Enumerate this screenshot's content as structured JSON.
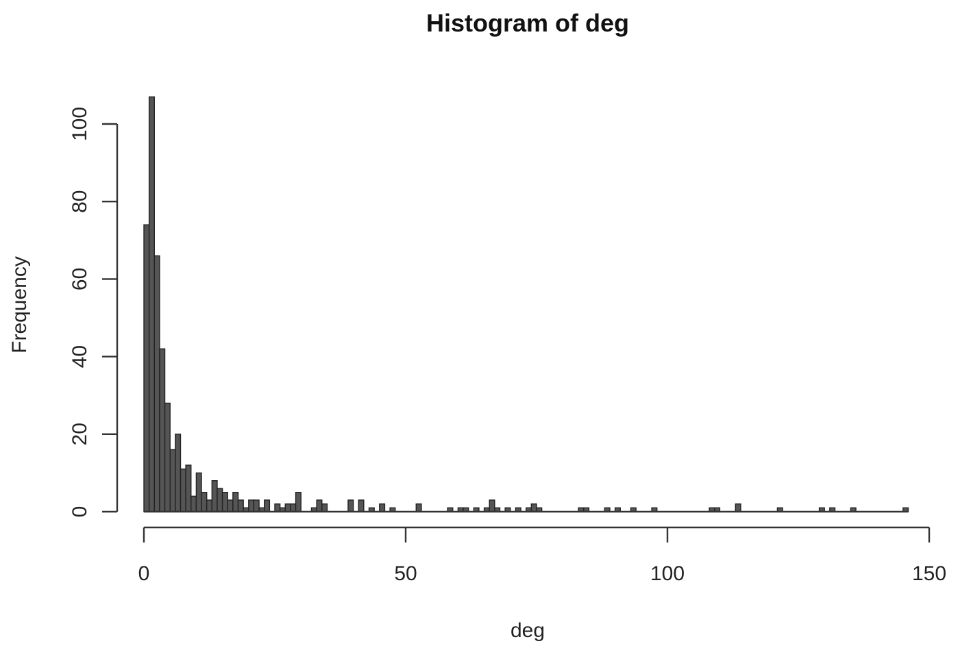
{
  "chart_data": {
    "type": "bar",
    "title": "Histogram of deg",
    "xlabel": "deg",
    "ylabel": "Frequency",
    "xlim": [
      0,
      150
    ],
    "ylim": [
      0,
      107
    ],
    "x_ticks": [
      "0",
      "50",
      "100",
      "150"
    ],
    "y_ticks": [
      "0",
      "20",
      "40",
      "60",
      "80",
      "100"
    ],
    "x_tick_values": [
      0,
      50,
      100,
      150
    ],
    "y_tick_values": [
      0,
      20,
      40,
      60,
      80,
      100
    ],
    "bin_width": 1,
    "grid": false,
    "legend": "none",
    "bar_color": "#555555",
    "bins": [
      {
        "x": 1,
        "y": 74
      },
      {
        "x": 2,
        "y": 107
      },
      {
        "x": 3,
        "y": 66
      },
      {
        "x": 4,
        "y": 42
      },
      {
        "x": 5,
        "y": 28
      },
      {
        "x": 6,
        "y": 16
      },
      {
        "x": 7,
        "y": 20
      },
      {
        "x": 8,
        "y": 11
      },
      {
        "x": 9,
        "y": 12
      },
      {
        "x": 10,
        "y": 4
      },
      {
        "x": 11,
        "y": 10
      },
      {
        "x": 12,
        "y": 5
      },
      {
        "x": 13,
        "y": 3
      },
      {
        "x": 14,
        "y": 8
      },
      {
        "x": 15,
        "y": 6
      },
      {
        "x": 16,
        "y": 5
      },
      {
        "x": 17,
        "y": 3
      },
      {
        "x": 18,
        "y": 5
      },
      {
        "x": 19,
        "y": 3
      },
      {
        "x": 20,
        "y": 1
      },
      {
        "x": 21,
        "y": 3
      },
      {
        "x": 22,
        "y": 3
      },
      {
        "x": 23,
        "y": 1
      },
      {
        "x": 24,
        "y": 3
      },
      {
        "x": 26,
        "y": 2
      },
      {
        "x": 27,
        "y": 1
      },
      {
        "x": 28,
        "y": 2
      },
      {
        "x": 29,
        "y": 2
      },
      {
        "x": 30,
        "y": 5
      },
      {
        "x": 33,
        "y": 1
      },
      {
        "x": 34,
        "y": 3
      },
      {
        "x": 35,
        "y": 2
      },
      {
        "x": 40,
        "y": 3
      },
      {
        "x": 42,
        "y": 3
      },
      {
        "x": 44,
        "y": 1
      },
      {
        "x": 46,
        "y": 2
      },
      {
        "x": 48,
        "y": 1
      },
      {
        "x": 53,
        "y": 2
      },
      {
        "x": 59,
        "y": 1
      },
      {
        "x": 61,
        "y": 1
      },
      {
        "x": 62,
        "y": 1
      },
      {
        "x": 64,
        "y": 1
      },
      {
        "x": 66,
        "y": 1
      },
      {
        "x": 67,
        "y": 3
      },
      {
        "x": 68,
        "y": 1
      },
      {
        "x": 70,
        "y": 1
      },
      {
        "x": 72,
        "y": 1
      },
      {
        "x": 74,
        "y": 1
      },
      {
        "x": 75,
        "y": 2
      },
      {
        "x": 76,
        "y": 1
      },
      {
        "x": 84,
        "y": 1
      },
      {
        "x": 85,
        "y": 1
      },
      {
        "x": 89,
        "y": 1
      },
      {
        "x": 91,
        "y": 1
      },
      {
        "x": 94,
        "y": 1
      },
      {
        "x": 98,
        "y": 1
      },
      {
        "x": 109,
        "y": 1
      },
      {
        "x": 110,
        "y": 1
      },
      {
        "x": 114,
        "y": 2
      },
      {
        "x": 122,
        "y": 1
      },
      {
        "x": 130,
        "y": 1
      },
      {
        "x": 132,
        "y": 1
      },
      {
        "x": 136,
        "y": 1
      },
      {
        "x": 146,
        "y": 1
      }
    ]
  }
}
